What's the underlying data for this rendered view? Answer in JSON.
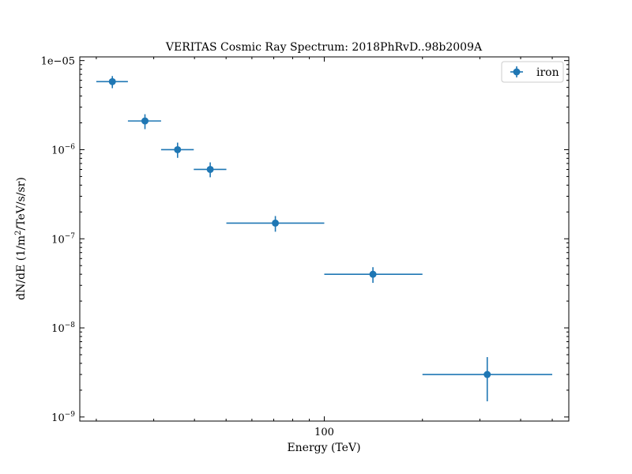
{
  "chart_data": {
    "type": "scatter",
    "title": "VERITAS Cosmic Ray Spectrum: 2018PhRvD..98b2009A",
    "xlabel": "Energy (TeV)",
    "ylabel_main": "dN/dE (1/m",
    "ylabel_sup": "2",
    "ylabel_rest": "/TeV/s/sr)",
    "x_scale": "log",
    "y_scale": "log",
    "xlim": [
      17.8,
      562
    ],
    "ylim": [
      9e-10,
      1.1e-05
    ],
    "x_ticks": [
      {
        "value": 100,
        "label": "100"
      }
    ],
    "y_ticks": [
      {
        "value": 1e-05,
        "label": "1e−05",
        "style": "plain"
      },
      {
        "value": 1e-06,
        "base": "10",
        "exp": "−6",
        "style": "sci"
      },
      {
        "value": 1e-07,
        "base": "10",
        "exp": "−7",
        "style": "sci"
      },
      {
        "value": 1e-08,
        "base": "10",
        "exp": "−8",
        "style": "sci"
      },
      {
        "value": 1e-09,
        "base": "10",
        "exp": "−9",
        "style": "sci"
      }
    ],
    "legend": {
      "position": "top-right",
      "entries": [
        "iron"
      ]
    },
    "grid": false,
    "series": [
      {
        "name": "iron",
        "color": "#1f77b4",
        "points": [
          {
            "x": 22.4,
            "y": 5.8e-06,
            "xlo": 20.0,
            "xhi": 25.0,
            "ylo": 4.9e-06,
            "yhi": 6.7e-06
          },
          {
            "x": 28.2,
            "y": 2.1e-06,
            "xlo": 25.0,
            "xhi": 31.6,
            "ylo": 1.7e-06,
            "yhi": 2.5e-06
          },
          {
            "x": 35.5,
            "y": 1e-06,
            "xlo": 31.6,
            "xhi": 39.8,
            "ylo": 8.1e-07,
            "yhi": 1.2e-06
          },
          {
            "x": 44.7,
            "y": 6e-07,
            "xlo": 39.8,
            "xhi": 50.1,
            "ylo": 4.9e-07,
            "yhi": 7.2e-07
          },
          {
            "x": 70.8,
            "y": 1.5e-07,
            "xlo": 50.1,
            "xhi": 100.0,
            "ylo": 1.2e-07,
            "yhi": 1.8e-07
          },
          {
            "x": 141.0,
            "y": 4e-08,
            "xlo": 100.0,
            "xhi": 200.0,
            "ylo": 3.2e-08,
            "yhi": 4.8e-08
          },
          {
            "x": 316.0,
            "y": 3e-09,
            "xlo": 200.0,
            "xhi": 500.0,
            "ylo": 1.5e-09,
            "yhi": 4.7e-09
          }
        ]
      }
    ]
  }
}
